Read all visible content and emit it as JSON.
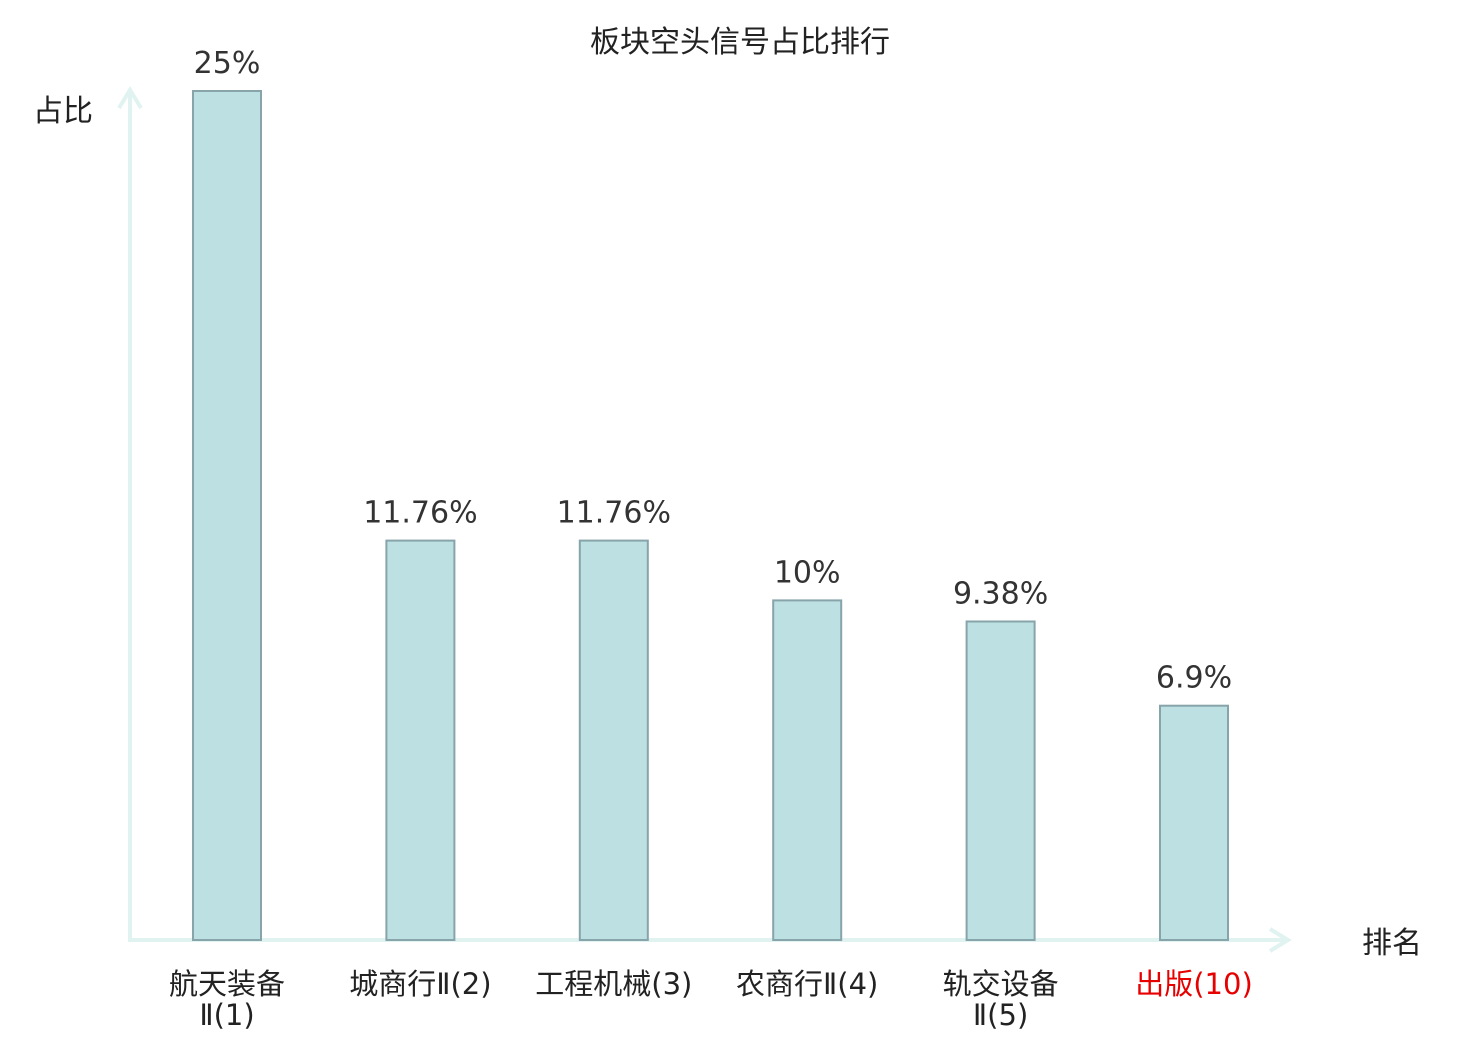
{
  "chart_data": {
    "type": "bar",
    "title": "板块空头信号占比排行",
    "ylabel": "占比",
    "xlabel": "排名",
    "ylim": [
      0,
      25
    ],
    "grid": false,
    "categories": [
      {
        "lines": [
          "航天装备",
          "Ⅱ(1)"
        ],
        "highlight": false
      },
      {
        "lines": [
          "城商行Ⅱ(2)"
        ],
        "highlight": false
      },
      {
        "lines": [
          "工程机械(3)"
        ],
        "highlight": false
      },
      {
        "lines": [
          "农商行Ⅱ(4)"
        ],
        "highlight": false
      },
      {
        "lines": [
          "轨交设备",
          "Ⅱ(5)"
        ],
        "highlight": false
      },
      {
        "lines": [
          "出版(10)"
        ],
        "highlight": true
      }
    ],
    "values": [
      25,
      11.76,
      11.76,
      10,
      9.38,
      6.9
    ],
    "value_labels": [
      "25%",
      "11.76%",
      "11.76%",
      "10%",
      "9.38%",
      "6.9%"
    ]
  },
  "colors": {
    "bar_fill": "#bde0e3",
    "bar_stroke": "#86a4aa",
    "axis": "#e0f3f0",
    "text": "#333333",
    "highlight_text": "#e60000"
  }
}
